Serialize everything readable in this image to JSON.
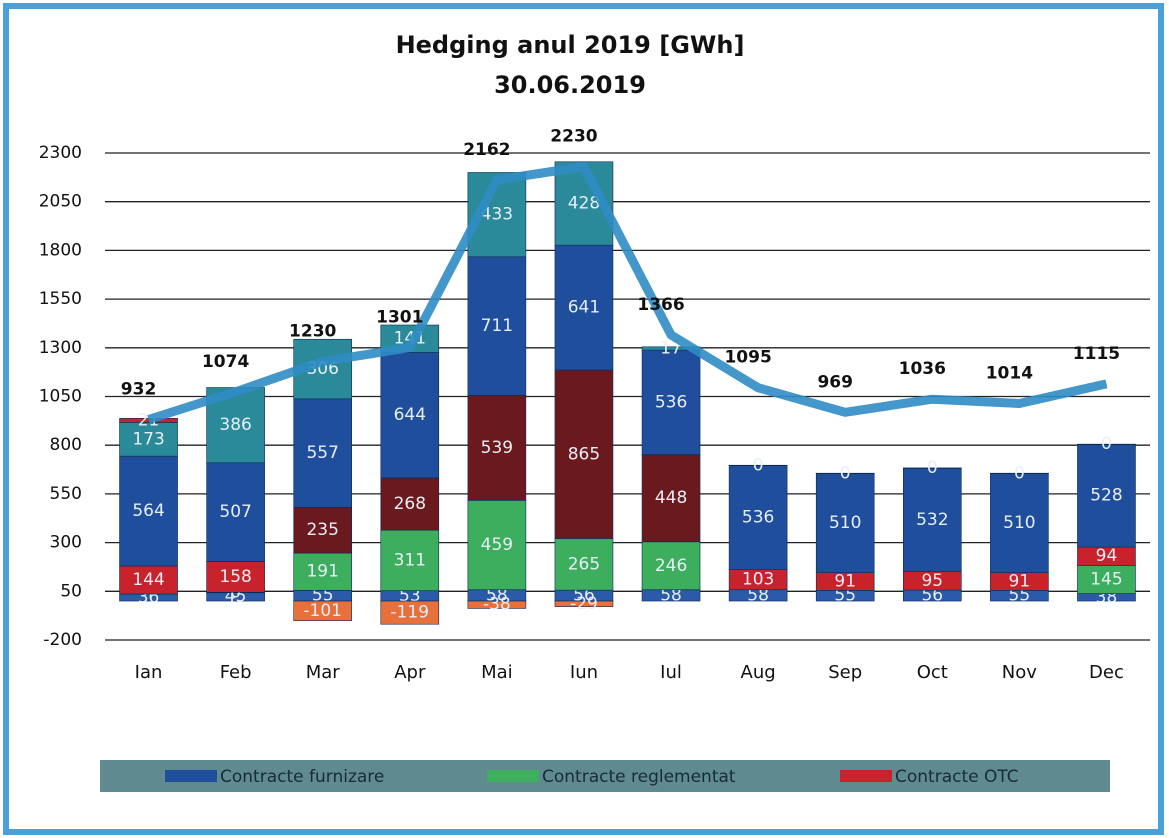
{
  "chart_data": {
    "type": "bar",
    "title": "Hedging anul 2019 [GWh]",
    "subtitle": "30.06.2019",
    "categories": [
      "Ian",
      "Feb",
      "Mar",
      "Apr",
      "Mai",
      "Iun",
      "Iul",
      "Aug",
      "Sep",
      "Oct",
      "Nov",
      "Dec"
    ],
    "ylim": [
      -200,
      2300
    ],
    "yticks": [
      -200,
      50,
      300,
      550,
      800,
      1050,
      1300,
      1550,
      1800,
      2050,
      2300
    ],
    "grid": true,
    "series": [
      {
        "color": "#2a5aa8",
        "values": [
          36,
          45,
          55,
          53,
          58,
          56,
          58,
          58,
          55,
          56,
          55,
          38
        ]
      },
      {
        "color": "#e8703a",
        "values": [
          null,
          null,
          -101,
          -119,
          -38,
          -29,
          null,
          null,
          null,
          null,
          null,
          null
        ]
      },
      {
        "name": "Contracte reglementat",
        "color": "#3dae5e",
        "values": [
          null,
          0,
          191,
          311,
          459,
          265,
          246,
          null,
          null,
          null,
          null,
          145
        ]
      },
      {
        "name": "Contracte OTC",
        "color": "#c8222c",
        "values": [
          144,
          158,
          null,
          null,
          null,
          null,
          null,
          103,
          91,
          95,
          91,
          94
        ]
      },
      {
        "color": "#6a1a1e",
        "values": [
          null,
          null,
          235,
          268,
          539,
          865,
          448,
          null,
          null,
          null,
          null,
          null
        ]
      },
      {
        "name": "Contracte furnizare",
        "color": "#1f4f9c",
        "values": [
          564,
          507,
          557,
          644,
          711,
          641,
          536,
          536,
          510,
          532,
          510,
          528
        ]
      },
      {
        "color": "#2a8a9a",
        "values": [
          173,
          386,
          306,
          141,
          433,
          428,
          17,
          0,
          0,
          0,
          0,
          0
        ]
      },
      {
        "color": "#c8222c",
        "values": [
          21,
          null,
          null,
          null,
          null,
          null,
          null,
          null,
          null,
          null,
          null,
          null
        ]
      },
      {
        "type": "line",
        "color": "#2f8cc4",
        "values": [
          932,
          1074,
          1230,
          1301,
          2162,
          2230,
          1366,
          1095,
          969,
          1036,
          1014,
          1115
        ]
      }
    ]
  }
}
